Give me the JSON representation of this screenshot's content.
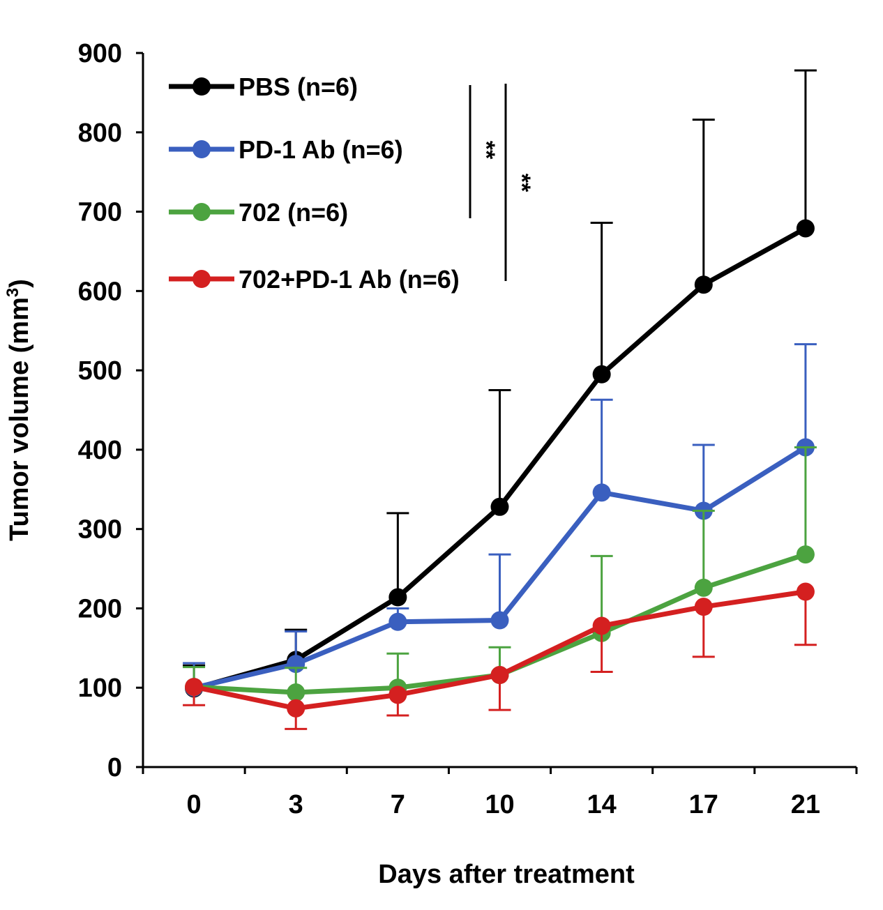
{
  "chart_data": {
    "type": "line",
    "title": "",
    "xlabel": "Days after treatment",
    "ylabel": "Tumor volume (mm",
    "ylabel_superscript": "3",
    "ylabel_close": ")",
    "categories": [
      "0",
      "3",
      "7",
      "10",
      "14",
      "17",
      "21"
    ],
    "ylim": [
      0,
      900
    ],
    "yticks": [
      0,
      100,
      200,
      300,
      400,
      500,
      600,
      700,
      800,
      900
    ],
    "grid": false,
    "legend_placement": "top-left",
    "series": [
      {
        "name": "PBS (n=6)",
        "color": "#000000",
        "values": [
          99,
          135,
          214,
          328,
          495,
          608,
          679
        ],
        "error_upper": [
          128,
          173,
          320,
          475,
          686,
          816,
          878
        ],
        "error_direction": "up"
      },
      {
        "name": "PD-1 Ab (n=6)",
        "color": "#3a5fbf",
        "values": [
          100,
          130,
          183,
          185,
          346,
          323,
          403
        ],
        "error_upper": [
          131,
          171,
          200,
          268,
          463,
          406,
          533
        ],
        "error_direction": "up"
      },
      {
        "name": "702 (n=6)",
        "color": "#4ca340",
        "values": [
          101,
          94,
          100,
          116,
          169,
          226,
          268
        ],
        "error_upper": [
          126,
          125,
          143,
          151,
          266,
          323,
          403
        ],
        "error_direction": "up"
      },
      {
        "name": "702+PD-1 Ab (n=6)",
        "color": "#d42020",
        "values": [
          101,
          74,
          91,
          116,
          178,
          202,
          221
        ],
        "error_lower": [
          78,
          48,
          65,
          72,
          120,
          139,
          154
        ],
        "error_direction": "down"
      }
    ],
    "annotations": [
      {
        "text": "**",
        "between": [
          "PBS (n=6)",
          "PD-1 Ab (n=6)"
        ]
      },
      {
        "text": "**",
        "between": [
          "PBS (n=6)",
          "702+PD-1 Ab (n=6)"
        ]
      }
    ]
  }
}
